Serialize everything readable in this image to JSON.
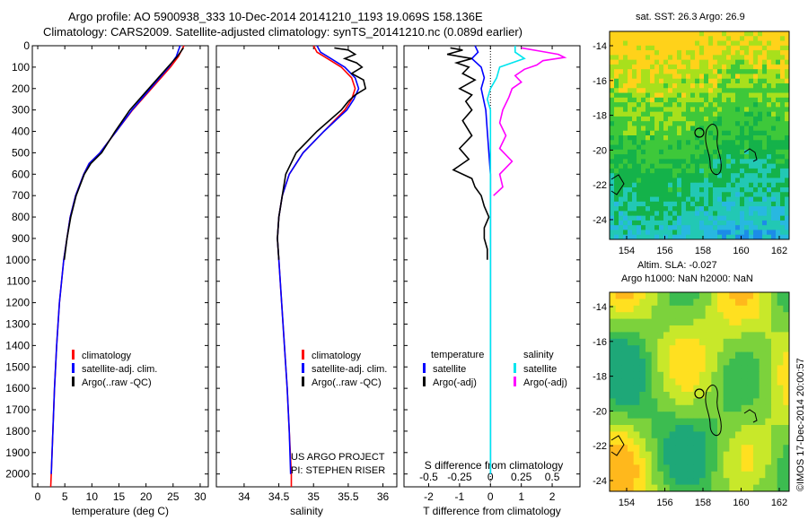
{
  "header": {
    "line1": "Argo profile: AO 5900938_333 10-Dec-2014 20141210_1193 19.069S 158.136E",
    "line2": "Climatology: CARS2009. Satellite-adjusted climatology: synTS_20141210.nc (0.089d earlier)"
  },
  "maps": {
    "sst_title": "sat. SST: 26.3 Argo: 26.9",
    "sla_title1": "Altim. SLA: -0.027",
    "sla_title2": "Argo h1000: NaN h2000: NaN",
    "credit": "©IMOS 17-Dec-2014 20:00:57",
    "x_ticks": [
      "154",
      "156",
      "158",
      "160",
      "162"
    ],
    "y_ticks": [
      "-14",
      "-16",
      "-18",
      "-20",
      "-22",
      "-24"
    ]
  },
  "project": {
    "line1": "US ARGO PROJECT",
    "line2": "PI: STEPHEN RISER"
  },
  "legend": {
    "clim": "climatology",
    "sat": "satellite-adj. clim.",
    "argo": "Argo(..raw -QC)",
    "diff_temp_head": "temperature",
    "diff_sal_head": "salinity",
    "diff_sat": "satellite",
    "diff_argo": "Argo(-adj)"
  },
  "colors": {
    "climatology": "#ff0000",
    "satellite": "#0000ff",
    "argo": "#000000",
    "salinity_satellite": "#00e5ee",
    "salinity_argo": "#ff00ff"
  },
  "chart_data": [
    {
      "type": "line",
      "xlabel": "temperature (deg C)",
      "ylabel": "",
      "xlim": [
        -1,
        31.5
      ],
      "ylim": [
        2060,
        0
      ],
      "x_ticks": [
        0,
        5,
        10,
        15,
        20,
        25,
        30
      ],
      "y_ticks": [
        0,
        100,
        200,
        300,
        400,
        500,
        600,
        700,
        800,
        900,
        1000,
        1100,
        1200,
        1300,
        1400,
        1500,
        1600,
        1700,
        1800,
        1900,
        2000
      ],
      "series": [
        {
          "name": "climatology",
          "color": "#ff0000",
          "depth": [
            0,
            50,
            100,
            200,
            300,
            400,
            500,
            550,
            600,
            700,
            800,
            1000,
            1200,
            1400,
            1600,
            1800,
            2000,
            2060
          ],
          "values": [
            27.0,
            26.0,
            24.5,
            21.0,
            17.5,
            14.5,
            11.5,
            9.5,
            8.5,
            7.0,
            6.0,
            4.8,
            4.0,
            3.5,
            3.1,
            2.8,
            2.5,
            2.4
          ]
        },
        {
          "name": "satellite-adj. clim.",
          "color": "#0000ff",
          "depth": [
            0,
            50,
            100,
            200,
            300,
            400,
            500,
            550,
            600,
            700,
            800,
            1000,
            1200,
            1400,
            1600,
            1800,
            2000
          ],
          "values": [
            26.3,
            25.6,
            24.2,
            20.8,
            17.4,
            14.5,
            11.5,
            9.5,
            8.5,
            7.0,
            6.0,
            4.8,
            4.0,
            3.5,
            3.1,
            2.8,
            2.5
          ]
        },
        {
          "name": "Argo(..raw -QC)",
          "color": "#000000",
          "depth": [
            10,
            50,
            100,
            200,
            300,
            400,
            500,
            550,
            600,
            700,
            800,
            900,
            1000
          ],
          "values": [
            26.9,
            25.8,
            24.0,
            20.5,
            17.0,
            14.3,
            11.8,
            9.8,
            8.6,
            7.1,
            6.1,
            5.4,
            4.9
          ]
        }
      ]
    },
    {
      "type": "line",
      "xlabel": "salinity",
      "xlim": [
        33.6,
        36.2
      ],
      "ylim": [
        2060,
        0
      ],
      "x_ticks": [
        34,
        34.5,
        35,
        35.5,
        36
      ],
      "series": [
        {
          "name": "climatology",
          "color": "#ff0000",
          "depth": [
            0,
            30,
            60,
            100,
            150,
            200,
            250,
            300,
            400,
            500,
            600,
            700,
            800,
            900,
            1000,
            1200,
            1400,
            1600,
            1800,
            2000,
            2060
          ],
          "values": [
            35.0,
            35.05,
            35.2,
            35.4,
            35.55,
            35.6,
            35.55,
            35.45,
            35.15,
            34.85,
            34.65,
            34.55,
            34.5,
            34.48,
            34.5,
            34.54,
            34.58,
            34.62,
            34.65,
            34.68,
            34.68
          ]
        },
        {
          "name": "satellite-adj. clim.",
          "color": "#0000ff",
          "depth": [
            0,
            30,
            60,
            100,
            150,
            200,
            250,
            300,
            400,
            500,
            600,
            700,
            800,
            900,
            1000,
            1200,
            1400,
            1600,
            1800,
            2000
          ],
          "values": [
            35.05,
            35.1,
            35.25,
            35.45,
            35.6,
            35.65,
            35.58,
            35.48,
            35.15,
            34.85,
            34.65,
            34.55,
            34.5,
            34.48,
            34.5,
            34.54,
            34.58,
            34.62,
            34.65,
            34.67
          ]
        },
        {
          "name": "Argo(..raw -QC)",
          "color": "#000000",
          "depth": [
            10,
            20,
            40,
            60,
            80,
            100,
            130,
            160,
            200,
            230,
            260,
            300,
            400,
            500,
            600,
            700,
            800,
            900,
            1000
          ],
          "values": [
            35.3,
            35.5,
            35.6,
            35.45,
            35.62,
            35.7,
            35.55,
            35.72,
            35.75,
            35.6,
            35.5,
            35.4,
            35.05,
            34.75,
            34.6,
            34.55,
            34.5,
            34.48,
            34.5
          ]
        }
      ]
    },
    {
      "type": "line",
      "xlabel": "T difference from climatology",
      "xlabel_top": "S difference from climatology",
      "xlim": [
        -2.8,
        2.9
      ],
      "ylim": [
        2060,
        0
      ],
      "x_ticks": [
        -2,
        -1,
        0,
        1,
        2
      ],
      "x_ticks_top": [
        "-0.5",
        "-0.25",
        "0",
        "0.25",
        "0.5"
      ],
      "x_ticks_top_pos": [
        -2,
        -1,
        0,
        1,
        2
      ],
      "series": [
        {
          "name": "temperature satellite",
          "color": "#0000ff",
          "depth": [
            0,
            30,
            60,
            100,
            150,
            200,
            300,
            400,
            600,
            900,
            1200,
            2000
          ],
          "values": [
            -0.5,
            -0.4,
            -0.6,
            -0.3,
            -0.2,
            -0.3,
            -0.15,
            -0.1,
            0,
            0,
            0,
            0
          ]
        },
        {
          "name": "temperature Argo(-adj)",
          "color": "#000000",
          "depth": [
            10,
            20,
            40,
            60,
            80,
            100,
            130,
            160,
            200,
            230,
            260,
            300,
            350,
            420,
            480,
            530,
            580,
            620,
            660,
            700,
            750,
            800,
            850,
            900,
            950,
            1000
          ],
          "values": [
            -1.3,
            -0.9,
            -1.4,
            -0.6,
            -1.1,
            -0.7,
            -0.9,
            -0.5,
            -1.0,
            -0.6,
            -0.8,
            -0.6,
            -0.9,
            -0.6,
            -1.0,
            -0.7,
            -1.2,
            -0.6,
            -0.5,
            -0.3,
            -0.2,
            -0.05,
            -0.2,
            -0.2,
            -0.1,
            -0.1
          ]
        },
        {
          "name": "salinity satellite",
          "color": "#00e5ee",
          "depth": [
            0,
            30,
            60,
            100,
            150,
            200,
            250,
            300,
            400,
            500,
            700,
            1000,
            2000
          ],
          "values": [
            0.8,
            0.8,
            1.1,
            0.3,
            0.2,
            0.0,
            -0.1,
            0.0,
            0.0,
            0.0,
            0.0,
            0.0,
            0.0
          ]
        },
        {
          "name": "salinity Argo(-adj)",
          "color": "#ff00ff",
          "depth": [
            10,
            25,
            40,
            55,
            70,
            90,
            110,
            140,
            170,
            200,
            240,
            300,
            360,
            420,
            480,
            540,
            600,
            660,
            700
          ],
          "values": [
            1.0,
            1.6,
            2.2,
            2.4,
            1.7,
            1.5,
            1.1,
            0.8,
            1.0,
            0.7,
            0.6,
            0.4,
            0.3,
            0.5,
            0.3,
            0.7,
            0.3,
            0.4,
            0.1
          ]
        }
      ]
    }
  ]
}
